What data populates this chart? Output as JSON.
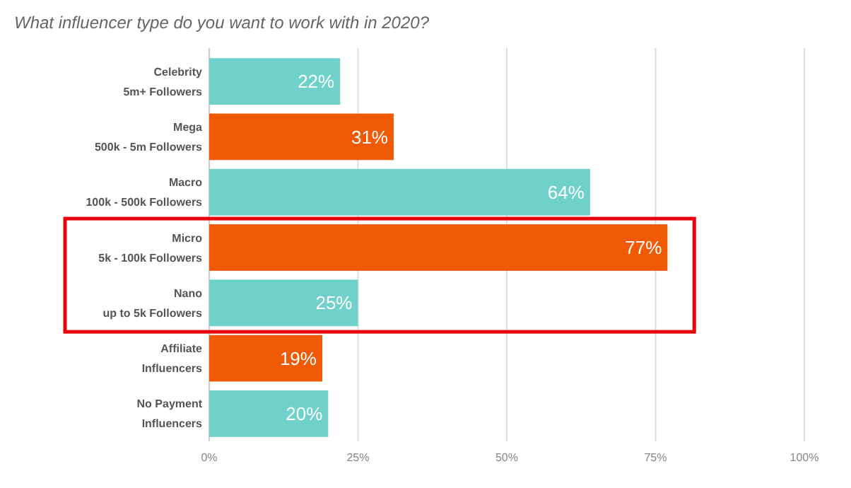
{
  "chart_data": {
    "type": "bar",
    "orientation": "horizontal",
    "title": "What influencer type do you want to work with in 2020?",
    "categories": [
      "Celebrity\n5m+ Followers",
      "Mega\n500k - 5m Followers",
      "Macro\n100k - 500k Followers",
      "Micro\n5k - 100k Followers",
      "Nano\nup to 5k Followers",
      "Affiliate\nInfluencers",
      "No Payment\nInfluencers"
    ],
    "values": [
      22,
      31,
      64,
      77,
      25,
      19,
      20
    ],
    "colors": [
      "#6fd1c9",
      "#f05a05",
      "#6fd1c9",
      "#f05a05",
      "#6fd1c9",
      "#f05a05",
      "#6fd1c9"
    ],
    "value_labels": [
      "22%",
      "31%",
      "64%",
      "77%",
      "25%",
      "19%",
      "20%"
    ],
    "xlim": [
      0,
      100
    ],
    "xticks": [
      {
        "value": 0,
        "label": "0%"
      },
      {
        "value": 25,
        "label": "25%"
      },
      {
        "value": 50,
        "label": "50%"
      },
      {
        "value": 75,
        "label": "75%"
      },
      {
        "value": 100,
        "label": "100%"
      }
    ],
    "grid": "x"
  }
}
